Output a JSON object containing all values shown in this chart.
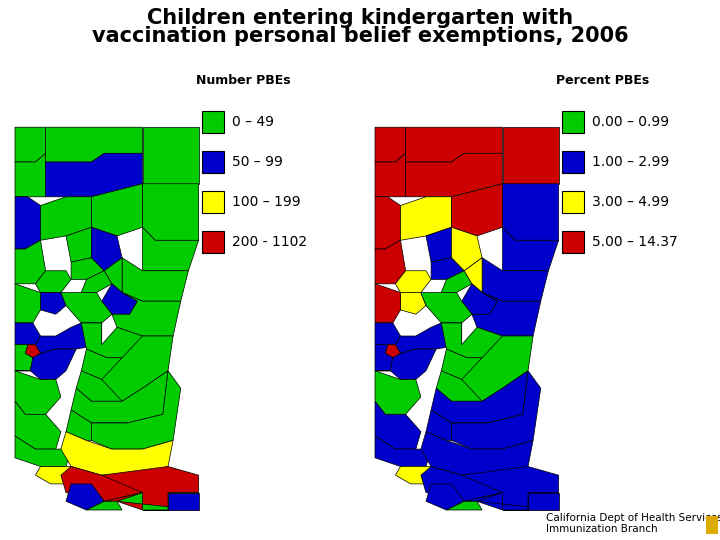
{
  "title_line1": "Children entering kindergarten with",
  "title_line2": "vaccination personal belief exemptions, 2006",
  "title_fontsize": 15,
  "background_color": "#ffffff",
  "left_legend_title": "Number PBEs",
  "right_legend_title": "Percent PBEs",
  "left_legend": [
    {
      "label": "0 – 49",
      "color": "#00cc00"
    },
    {
      "label": "50 – 99",
      "color": "#0000cc"
    },
    {
      "label": "100 – 199",
      "color": "#ffff00"
    },
    {
      "label": "200 - 1102",
      "color": "#cc0000"
    }
  ],
  "right_legend": [
    {
      "label": "0.00 – 0.99",
      "color": "#00cc00"
    },
    {
      "label": "1.00 – 2.99",
      "color": "#0000cc"
    },
    {
      "label": "3.00 – 4.99",
      "color": "#ffff00"
    },
    {
      "label": "5.00 – 14.37",
      "color": "#cc0000"
    }
  ],
  "footer_line1": "California Dept of Health Services",
  "footer_line2": "Immunization Branch",
  "map_outline_color": "#000000"
}
